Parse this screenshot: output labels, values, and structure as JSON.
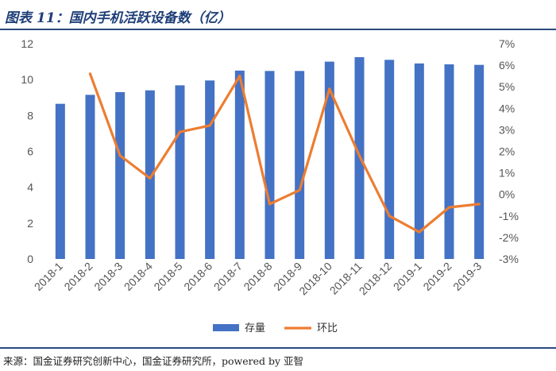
{
  "title": "图表 11：国内手机活跃设备数（亿）",
  "source": "来源：国金证券研究创新中心，国金证券研究所，powered by 亚智",
  "chart_data": {
    "type": "bar",
    "categories": [
      "2018-1",
      "2018-2",
      "2018-3",
      "2018-4",
      "2018-5",
      "2018-6",
      "2018-7",
      "2018-8",
      "2018-9",
      "2018-10",
      "2018-11",
      "2018-12",
      "2019-1",
      "2019-2",
      "2019-3"
    ],
    "series": [
      {
        "name": "存量",
        "type": "bar",
        "axis": "left",
        "color": "#4472c4",
        "values": [
          8.65,
          9.15,
          9.3,
          9.4,
          9.68,
          9.95,
          10.5,
          10.48,
          10.48,
          11.0,
          11.25,
          11.1,
          10.9,
          10.85,
          10.82
        ]
      },
      {
        "name": "环比",
        "type": "line",
        "axis": "right",
        "color": "#ed7d31",
        "values": [
          null,
          5.6,
          1.8,
          0.75,
          2.9,
          3.2,
          5.5,
          -0.45,
          0.2,
          4.9,
          1.8,
          -1.0,
          -1.75,
          -0.6,
          -0.45
        ]
      }
    ],
    "y_left": {
      "min": 0,
      "max": 12,
      "ticks": [
        0,
        2,
        4,
        6,
        8,
        10,
        12
      ]
    },
    "y_right": {
      "min": -3,
      "max": 7,
      "ticks": [
        "-3%",
        "-2%",
        "-1%",
        "0%",
        "1%",
        "2%",
        "3%",
        "4%",
        "5%",
        "6%",
        "7%"
      ],
      "unit": "%"
    },
    "legend_position": "bottom"
  }
}
